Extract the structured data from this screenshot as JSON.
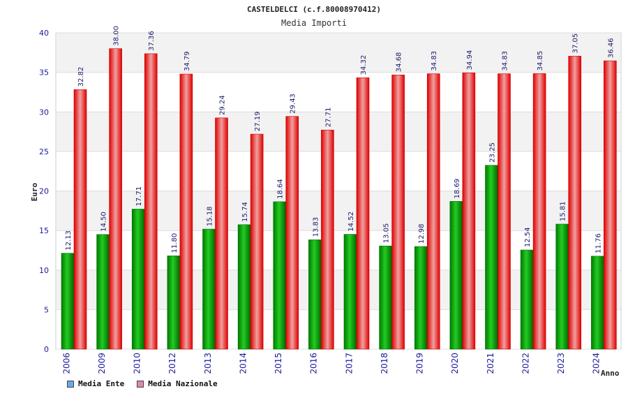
{
  "chart_data": {
    "type": "bar",
    "title": "CASTELDELCI (c.f.80008970412)",
    "subtitle": "Media Importi",
    "xlabel": "Anno",
    "ylabel": "Euro",
    "ylim": [
      0,
      40
    ],
    "yticks": [
      0,
      5,
      10,
      15,
      20,
      25,
      30,
      35,
      40
    ],
    "grid": true,
    "legend_position": "bottom-left",
    "categories": [
      "2006",
      "2009",
      "2010",
      "2012",
      "2013",
      "2014",
      "2015",
      "2016",
      "2017",
      "2018",
      "2019",
      "2020",
      "2021",
      "2022",
      "2023",
      "2024"
    ],
    "series": [
      {
        "name": "Media Ente",
        "color": "#18b818",
        "legend_color": "#6aa8e8",
        "values": [
          12.13,
          14.5,
          17.71,
          11.8,
          15.18,
          15.74,
          18.64,
          13.83,
          14.52,
          13.05,
          12.98,
          18.69,
          23.25,
          12.54,
          15.81,
          11.76
        ]
      },
      {
        "name": "Media Nazionale",
        "color": "#ee2020",
        "legend_color": "#e088b0",
        "values": [
          32.82,
          38.0,
          37.36,
          34.79,
          29.24,
          27.19,
          29.43,
          27.71,
          34.32,
          34.68,
          34.83,
          34.94,
          34.83,
          34.85,
          37.05,
          36.46
        ]
      }
    ]
  }
}
